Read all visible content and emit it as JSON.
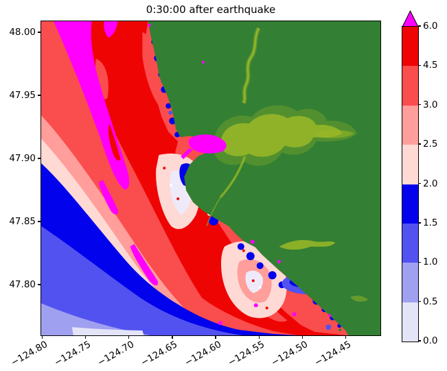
{
  "figure": {
    "title": "0:30:00 after earthquake"
  },
  "chart_data": {
    "type": "filled_contour_map",
    "title": "0:30:00 after earthquake",
    "subject": "tsunami wave height map, coastal strip with offshore wave-height bands, dark-green land to the northeast and colorbar at right",
    "xlim": [
      -124.802,
      -124.4092
    ],
    "ylim": [
      47.7593,
      48.0092
    ],
    "x_ticks": {
      "values": [
        -124.8,
        -124.75,
        -124.7,
        -124.65,
        -124.6,
        -124.55,
        -124.5,
        -124.45
      ],
      "labels": [
        "−124.80",
        "−124.75",
        "−124.70",
        "−124.65",
        "−124.60",
        "−124.55",
        "−124.50",
        "−124.45"
      ],
      "rotation_deg": 30
    },
    "y_ticks": {
      "values": [
        48.0,
        47.95,
        47.9,
        47.85,
        47.8
      ],
      "labels": [
        "48.00",
        "47.95",
        "47.90",
        "47.85",
        "47.80"
      ]
    },
    "colorbar": {
      "levels": [
        0.0,
        0.5,
        1.0,
        1.5,
        2.0,
        2.5,
        3.0,
        4.5,
        6.0
      ],
      "tick_labels": [
        "0.0",
        "0.5",
        "1.0",
        "1.5",
        "2.0",
        "2.5",
        "3.0",
        "4.5",
        "6.0"
      ],
      "segment_colors": [
        "#e4e4f9",
        "#a0a0f0",
        "#5252f0",
        "#0202ec",
        "#ffd9d4",
        "#ff9e9a",
        "#fa4d4d",
        "#ef0404"
      ],
      "over_color": "#ff00ff",
      "extend": "max",
      "spacing": "uniform"
    },
    "map": {
      "land_color": "#337f33",
      "terrain_stream_color": "#9ab827",
      "over_color": "#ff00ff",
      "features": [
        "dark green land occupies upper-right/right, coastline runs diagonally from top-center to bottom-right corner",
        "yellow-green river and lake-basin streaks on land near center",
        "offshore upper-left: large red (4.5-6.0) mass with magenta (>6.0) elongated streaks",
        "lower-left: diagonal banded gradient from salmon/pink through light pink to blue, violet-blue, light purple and pale lavender at the corner",
        "narrow blue, white and magenta patches hug the jagged coastline"
      ]
    }
  },
  "layout_colors": {
    "c0": "#e4e4f9",
    "c1": "#a0a0f0",
    "c2": "#5252f0",
    "c3": "#0202ec",
    "c4": "#ffd9d4",
    "c5": "#ff9e9a",
    "c6": "#fa4d4d",
    "c7": "#ef0404",
    "over": "#ff00ff",
    "land": "#337f33",
    "olive": "#9ab827"
  }
}
